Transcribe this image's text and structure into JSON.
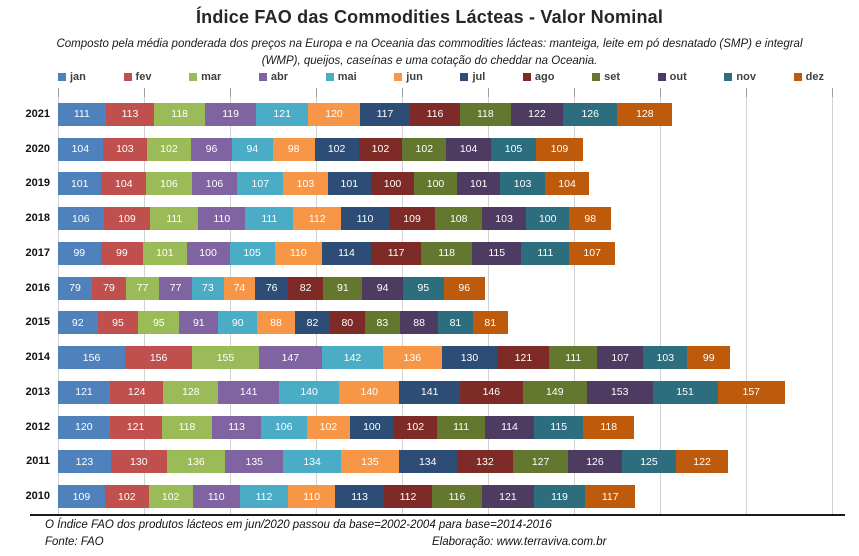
{
  "title": "Índice FAO das Commodities Lácteas - Valor Nominal",
  "subtitle": "Composto pela média ponderada dos preços na Europa e na Oceania das commodities lácteas: manteiga, leite em pó desnatado (SMP) e integral (WMP), queijos, caseínas e uma cotação do cheddar na Oceania.",
  "footer": {
    "note": "O Índice FAO dos produtos lácteos em jun/2020 passou da base=2002-2004 para base=2014-2016",
    "source": "Fonte: FAO",
    "elaboration": "Elaboração: www.terraviva.com.br"
  },
  "chart_data": {
    "type": "bar",
    "orientation": "horizontal-stacked",
    "title": "Índice FAO das Commodities Lácteas - Valor Nominal",
    "legend_position": "top",
    "grid": true,
    "xlim": [
      0,
      1800
    ],
    "gridline_step": 200,
    "categories": [
      "2021",
      "2020",
      "2019",
      "2018",
      "2017",
      "2016",
      "2015",
      "2014",
      "2013",
      "2012",
      "2011",
      "2010"
    ],
    "months": [
      "jan",
      "fev",
      "mar",
      "abr",
      "mai",
      "jun",
      "jul",
      "ago",
      "set",
      "out",
      "nov",
      "dez"
    ],
    "colors": [
      "#4F81BD",
      "#C0504D",
      "#9BBB59",
      "#8064A2",
      "#4BACC6",
      "#F79646",
      "#2E4D76",
      "#7E2B28",
      "#63772F",
      "#4D3B62",
      "#2C6E7E",
      "#BE5A0B"
    ],
    "series": [
      {
        "name": "jan",
        "values": [
          111,
          104,
          101,
          106,
          99,
          79,
          92,
          156,
          121,
          120,
          123,
          109
        ]
      },
      {
        "name": "fev",
        "values": [
          113,
          103,
          104,
          109,
          99,
          79,
          95,
          156,
          124,
          121,
          130,
          102
        ]
      },
      {
        "name": "mar",
        "values": [
          118,
          102,
          106,
          111,
          101,
          77,
          95,
          155,
          128,
          118,
          136,
          102
        ]
      },
      {
        "name": "abr",
        "values": [
          119,
          96,
          106,
          110,
          100,
          77,
          91,
          147,
          141,
          113,
          135,
          110
        ]
      },
      {
        "name": "mai",
        "values": [
          121,
          94,
          107,
          111,
          105,
          73,
          90,
          142,
          140,
          106,
          134,
          112
        ]
      },
      {
        "name": "jun",
        "values": [
          120,
          98,
          103,
          112,
          110,
          74,
          88,
          136,
          140,
          102,
          135,
          110
        ]
      },
      {
        "name": "jul",
        "values": [
          117,
          102,
          101,
          110,
          114,
          76,
          82,
          130,
          141,
          100,
          134,
          113
        ]
      },
      {
        "name": "ago",
        "values": [
          116,
          102,
          100,
          109,
          117,
          82,
          80,
          121,
          146,
          102,
          132,
          112
        ]
      },
      {
        "name": "set",
        "values": [
          118,
          102,
          100,
          108,
          118,
          91,
          83,
          111,
          149,
          111,
          127,
          116
        ]
      },
      {
        "name": "out",
        "values": [
          122,
          104,
          101,
          103,
          115,
          94,
          88,
          107,
          153,
          114,
          126,
          121
        ]
      },
      {
        "name": "nov",
        "values": [
          126,
          105,
          103,
          100,
          111,
          95,
          81,
          103,
          151,
          115,
          125,
          119
        ]
      },
      {
        "name": "dez",
        "values": [
          128,
          109,
          104,
          98,
          107,
          96,
          81,
          99,
          157,
          118,
          122,
          117
        ]
      }
    ]
  }
}
